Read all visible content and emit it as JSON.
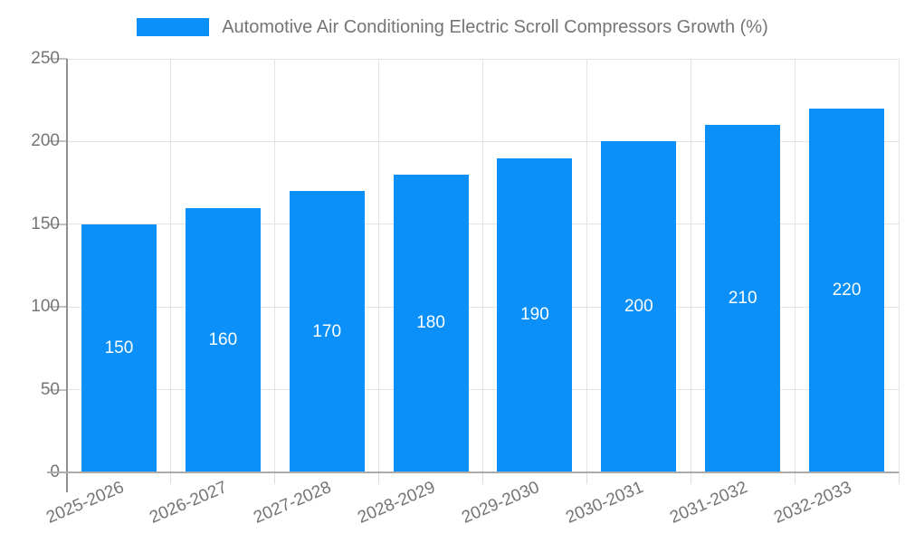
{
  "chart_data": {
    "type": "bar",
    "title": "Automotive Air Conditioning Electric Scroll Compressors Growth (%)",
    "legend_position": "top",
    "categories": [
      "2025-2026",
      "2026-2027",
      "2027-2028",
      "2028-2029",
      "2029-2030",
      "2030-2031",
      "2031-2032",
      "2032-2033"
    ],
    "values": [
      150,
      160,
      170,
      180,
      190,
      200,
      210,
      220
    ],
    "xlabel": "",
    "ylabel": "",
    "ylim": [
      0,
      250
    ],
    "yticks": [
      0,
      50,
      100,
      150,
      200,
      250
    ],
    "grid": true,
    "colors": {
      "bar": "#0a90f8",
      "value_label": "#ffffff",
      "axis_text": "#757575",
      "gridline": "#e3e3e3"
    }
  }
}
